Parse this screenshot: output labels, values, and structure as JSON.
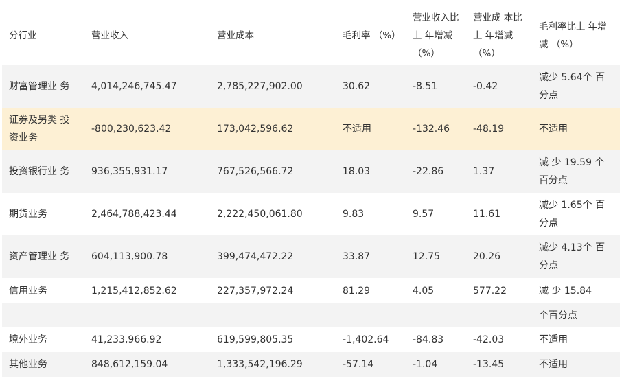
{
  "header": {
    "segment": "分行业",
    "revenue": "营业收入",
    "cost": "营业成本",
    "gross_margin": "毛利率 （%）",
    "revenue_change": "营业收入比上 年增减 （%）",
    "cost_change": "营业成 本比上 年增减 （%）",
    "margin_change": "毛利率比上 年增减 （%）"
  },
  "rows": [
    {
      "segment": "财富管理业 务",
      "revenue": "4,014,246,745.47",
      "cost": "2,785,227,902.00",
      "gross_margin": "30.62",
      "revenue_change": "-8.51",
      "cost_change": "-0.42",
      "margin_change": "减少 5.64个 百分点"
    },
    {
      "segment": "证券及另类 投资业务",
      "revenue": "-800,230,623.42",
      "cost": "173,042,596.62",
      "gross_margin": "不适用",
      "revenue_change": "-132.46",
      "cost_change": "-48.19",
      "margin_change": "不适用"
    },
    {
      "segment": "投资银行业 务",
      "revenue": "936,355,931.17",
      "cost": "767,526,566.72",
      "gross_margin": "18.03",
      "revenue_change": "-22.86",
      "cost_change": "1.37",
      "margin_change": "减 少 19.59 个百分点"
    },
    {
      "segment": "期货业务",
      "revenue": "2,464,788,423.44",
      "cost": "2,222,450,061.80",
      "gross_margin": "9.83",
      "revenue_change": "9.57",
      "cost_change": "11.61",
      "margin_change": "减少 1.65个 百分点"
    },
    {
      "segment": "资产管理业 务",
      "revenue": "604,113,900.78",
      "cost": "399,474,472.22",
      "gross_margin": "33.87",
      "revenue_change": "12.75",
      "cost_change": "20.26",
      "margin_change": "减少 4.13个 百分点"
    },
    {
      "segment": "信用业务",
      "revenue": "1,215,412,852.62",
      "cost": "227,357,972.24",
      "gross_margin": "81.29",
      "revenue_change": "4.05",
      "cost_change": "577.22",
      "margin_change": "减 少 15.84"
    },
    {
      "segment": "",
      "revenue": "",
      "cost": "",
      "gross_margin": "",
      "revenue_change": "",
      "cost_change": "",
      "margin_change": "个百分点"
    },
    {
      "segment": "境外业务",
      "revenue": "41,233,966.92",
      "cost": "619,599,805.35",
      "gross_margin": "-1,402.64",
      "revenue_change": "-84.83",
      "cost_change": "-42.03",
      "margin_change": "不适用"
    },
    {
      "segment": "其他业务",
      "revenue": "848,612,159.04",
      "cost": "1,333,542,196.29",
      "gross_margin": "-57.14",
      "revenue_change": "-1.04",
      "cost_change": "-13.45",
      "margin_change": "不适用"
    }
  ]
}
